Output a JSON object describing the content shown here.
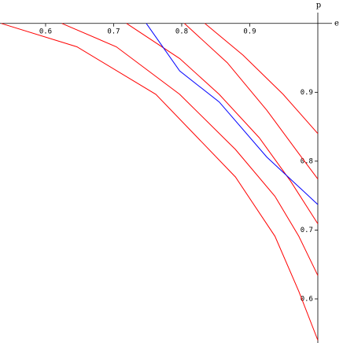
{
  "chart_data": {
    "type": "line",
    "x_label": "e",
    "y_label": "p",
    "xlim": [
      0.533,
      1.037
    ],
    "ylim": [
      0.536,
      1.034
    ],
    "xticks": [
      0.6,
      0.7,
      0.8,
      0.9
    ],
    "yticks": [
      0.6,
      0.7,
      0.8,
      0.9
    ],
    "series": [
      {
        "color": "#ff0000",
        "x": [
          0.535,
          0.646,
          0.762,
          0.879,
          0.937,
          0.972,
          1.0
        ],
        "values": [
          1.0,
          0.966,
          0.897,
          0.777,
          0.691,
          0.611,
          0.54
        ]
      },
      {
        "color": "#ff0000",
        "x": [
          0.624,
          0.704,
          0.797,
          0.879,
          0.937,
          0.972,
          1.0
        ],
        "values": [
          1.0,
          0.966,
          0.897,
          0.817,
          0.749,
          0.691,
          0.634
        ]
      },
      {
        "color": "#ff0000",
        "x": [
          0.719,
          0.797,
          0.855,
          0.914,
          0.96,
          1.0
        ],
        "values": [
          1.0,
          0.949,
          0.897,
          0.834,
          0.771,
          0.709
        ]
      },
      {
        "color": "#ff0000",
        "x": [
          0.804,
          0.867,
          0.925,
          0.972,
          1.0
        ],
        "values": [
          1.0,
          0.943,
          0.874,
          0.811,
          0.774
        ]
      },
      {
        "color": "#ff0000",
        "x": [
          0.834,
          0.89,
          0.949,
          1.0
        ],
        "values": [
          1.0,
          0.954,
          0.897,
          0.84
        ]
      },
      {
        "color": "#0000ff",
        "x": [
          0.748,
          0.797,
          0.855,
          0.925,
          1.0
        ],
        "values": [
          1.0,
          0.931,
          0.886,
          0.806,
          0.737
        ]
      }
    ]
  }
}
